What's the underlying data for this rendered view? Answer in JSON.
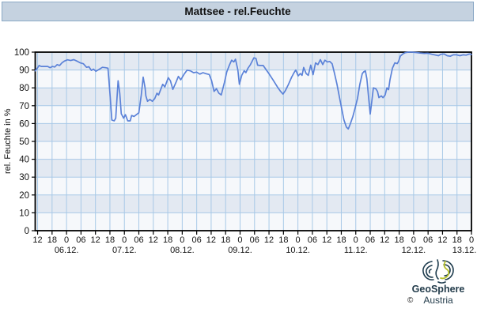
{
  "window": {
    "title": "Mattsee - rel.Feuchte"
  },
  "branding": {
    "copyright": "©",
    "name": "GeoSphere",
    "country": "Austria"
  },
  "colors": {
    "titlebar_bg": "#c5d2e0",
    "titlebar_border": "#8ba9c6",
    "band_blue": "#e3e9f2",
    "band_white": "#f6f8fb",
    "grid": "#a8c9e7",
    "line": "#5b82d8",
    "border": "#000000",
    "tick": "#000000",
    "logo_teal": "#1d3b4d",
    "logo_green": "#b5bf2a",
    "logo_text": "#233c4b"
  },
  "chart_data": {
    "type": "line",
    "title": "Mattsee - rel.Feuchte",
    "ylabel": "rel. Feuchte in %",
    "xlabel": "",
    "ylim": [
      0,
      100
    ],
    "y_ticks": [
      0,
      10,
      20,
      30,
      40,
      50,
      60,
      70,
      80,
      90,
      100
    ],
    "grid": true,
    "banding": "alternating 10%-rows, blue band at top (100-90)",
    "legend_position": "none",
    "x_unit": "hours since 05.12. 11:00",
    "x_range": [
      0,
      181
    ],
    "x_ticks": {
      "start_hour": 1,
      "interval_hours": 6,
      "labels": [
        "12",
        "18",
        "0",
        "06",
        "12",
        "18",
        "0",
        "06",
        "12",
        "18",
        "0",
        "06",
        "12",
        "18",
        "0",
        "06",
        "12",
        "18",
        "0",
        "06",
        "12",
        "18",
        "0",
        "06",
        "12",
        "18",
        "0",
        "06",
        "12",
        "18",
        "0"
      ]
    },
    "date_labels": [
      {
        "label": "06.12.",
        "hour": 13
      },
      {
        "label": "07.12.",
        "hour": 37
      },
      {
        "label": "08.12.",
        "hour": 61
      },
      {
        "label": "09.12.",
        "hour": 85
      },
      {
        "label": "10.12.",
        "hour": 109
      },
      {
        "label": "11.12.",
        "hour": 133
      },
      {
        "label": "12.12.",
        "hour": 157
      },
      {
        "label": "13.12.",
        "hour": 181
      }
    ],
    "series": [
      {
        "name": "rel.Feuchte",
        "color": "#5b82d8",
        "points": [
          [
            0,
            89.5
          ],
          [
            0.9,
            91
          ],
          [
            1.6,
            92.5
          ],
          [
            2.5,
            92
          ],
          [
            3.9,
            92
          ],
          [
            5.2,
            92
          ],
          [
            6.2,
            91.3
          ],
          [
            7.1,
            92
          ],
          [
            8.1,
            91.7
          ],
          [
            9.1,
            93
          ],
          [
            10.1,
            92.5
          ],
          [
            11.1,
            94
          ],
          [
            12.1,
            95
          ],
          [
            13.4,
            95.7
          ],
          [
            14.7,
            95.3
          ],
          [
            16,
            95.8
          ],
          [
            17.3,
            95
          ],
          [
            18.7,
            94
          ],
          [
            20,
            93.5
          ],
          [
            21.3,
            91.5
          ],
          [
            22.3,
            91.8
          ],
          [
            23.3,
            89.8
          ],
          [
            24.2,
            90.5
          ],
          [
            25.2,
            89.3
          ],
          [
            26.5,
            90.3
          ],
          [
            27.9,
            91.5
          ],
          [
            29.2,
            91.3
          ],
          [
            30.2,
            91
          ],
          [
            31.1,
            75
          ],
          [
            31.8,
            62
          ],
          [
            32.8,
            61.5
          ],
          [
            33.4,
            63
          ],
          [
            34.4,
            84
          ],
          [
            35.1,
            77
          ],
          [
            35.7,
            65.5
          ],
          [
            36.7,
            63
          ],
          [
            37.4,
            65
          ],
          [
            38.4,
            61.5
          ],
          [
            39.4,
            61.5
          ],
          [
            40,
            64.5
          ],
          [
            41,
            64
          ],
          [
            42,
            65
          ],
          [
            43,
            66
          ],
          [
            44,
            76
          ],
          [
            44.8,
            86
          ],
          [
            45.6,
            80
          ],
          [
            45.9,
            75.5
          ],
          [
            46.6,
            72.5
          ],
          [
            47.6,
            73.5
          ],
          [
            48.6,
            72.5
          ],
          [
            49.6,
            74
          ],
          [
            50.5,
            77
          ],
          [
            51.2,
            76
          ],
          [
            52.9,
            82
          ],
          [
            53.8,
            80.5
          ],
          [
            55.2,
            85.7
          ],
          [
            56.1,
            84
          ],
          [
            57.1,
            79.1
          ],
          [
            58.4,
            83
          ],
          [
            59.4,
            86.4
          ],
          [
            60.4,
            84.5
          ],
          [
            61.7,
            87.5
          ],
          [
            63,
            89.9
          ],
          [
            64.4,
            89.5
          ],
          [
            65.7,
            88.5
          ],
          [
            67,
            88.8
          ],
          [
            68.3,
            87.7
          ],
          [
            69.6,
            88.5
          ],
          [
            70.9,
            87.9
          ],
          [
            72.2,
            87.5
          ],
          [
            73.2,
            84
          ],
          [
            74.2,
            78
          ],
          [
            75.2,
            79.5
          ],
          [
            76.2,
            77
          ],
          [
            77.2,
            76
          ],
          [
            78.5,
            83
          ],
          [
            79.5,
            89
          ],
          [
            80.5,
            92.5
          ],
          [
            81.5,
            95.5
          ],
          [
            82.4,
            94.5
          ],
          [
            83.1,
            96
          ],
          [
            84.1,
            90
          ],
          [
            84.7,
            82
          ],
          [
            85.7,
            87
          ],
          [
            86.7,
            89.6
          ],
          [
            87.4,
            88.5
          ],
          [
            88.3,
            91
          ],
          [
            89.3,
            93
          ],
          [
            90.7,
            96.8
          ],
          [
            91.6,
            96.5
          ],
          [
            92.3,
            92.7
          ],
          [
            93.3,
            92.5
          ],
          [
            94.6,
            92.5
          ],
          [
            95.9,
            90
          ],
          [
            97.2,
            87.5
          ],
          [
            98.9,
            84
          ],
          [
            100.5,
            80.5
          ],
          [
            101.8,
            78
          ],
          [
            102.8,
            76.5
          ],
          [
            103.8,
            78.5
          ],
          [
            105.1,
            82
          ],
          [
            106.4,
            86
          ],
          [
            107.4,
            88.5
          ],
          [
            108.1,
            90
          ],
          [
            109.1,
            86.7
          ],
          [
            110,
            88
          ],
          [
            110.7,
            87
          ],
          [
            111.4,
            91.4
          ],
          [
            112.4,
            88
          ],
          [
            113.3,
            87
          ],
          [
            114.3,
            92.7
          ],
          [
            115.3,
            87.4
          ],
          [
            116.3,
            94
          ],
          [
            117.3,
            93
          ],
          [
            118.3,
            95.8
          ],
          [
            119.3,
            93
          ],
          [
            120.2,
            95.5
          ],
          [
            121.2,
            94.5
          ],
          [
            122.2,
            94.8
          ],
          [
            123.2,
            93.5
          ],
          [
            124.2,
            88
          ],
          [
            125.2,
            82
          ],
          [
            126.2,
            75
          ],
          [
            127.2,
            68
          ],
          [
            128.1,
            62
          ],
          [
            129.1,
            58
          ],
          [
            129.9,
            57
          ],
          [
            130.8,
            60
          ],
          [
            131.8,
            64
          ],
          [
            132.7,
            68.5
          ],
          [
            133.7,
            74
          ],
          [
            134.7,
            82
          ],
          [
            135.7,
            88
          ],
          [
            136.3,
            89
          ],
          [
            137,
            89.5
          ],
          [
            137.6,
            85
          ],
          [
            138.3,
            75
          ],
          [
            139,
            65.3
          ],
          [
            139.6,
            72
          ],
          [
            140.3,
            80
          ],
          [
            141.3,
            79.5
          ],
          [
            142,
            78
          ],
          [
            142.6,
            74.5
          ],
          [
            143.6,
            75.5
          ],
          [
            144.3,
            74.5
          ],
          [
            145.2,
            76
          ],
          [
            145.9,
            80
          ],
          [
            146.6,
            79
          ],
          [
            147.2,
            84.5
          ],
          [
            148.2,
            91
          ],
          [
            149.2,
            94
          ],
          [
            150.2,
            93.6
          ],
          [
            150.8,
            95
          ],
          [
            151.5,
            97.8
          ],
          [
            152.5,
            99
          ],
          [
            153.5,
            99.7
          ],
          [
            154.8,
            100
          ],
          [
            156.4,
            100
          ],
          [
            158.1,
            99.8
          ],
          [
            159.7,
            99.5
          ],
          [
            161.4,
            99.3
          ],
          [
            163,
            99.4
          ],
          [
            164.6,
            98.8
          ],
          [
            166.3,
            98.3
          ],
          [
            167.3,
            98
          ],
          [
            168.3,
            98.8
          ],
          [
            169.6,
            99
          ],
          [
            170.9,
            98
          ],
          [
            172.2,
            97.7
          ],
          [
            173.5,
            98.5
          ],
          [
            174.8,
            98.5
          ],
          [
            176.2,
            98
          ],
          [
            177.5,
            98.5
          ],
          [
            178.8,
            98.3
          ],
          [
            180.1,
            99
          ],
          [
            181,
            98.7
          ]
        ]
      }
    ]
  }
}
